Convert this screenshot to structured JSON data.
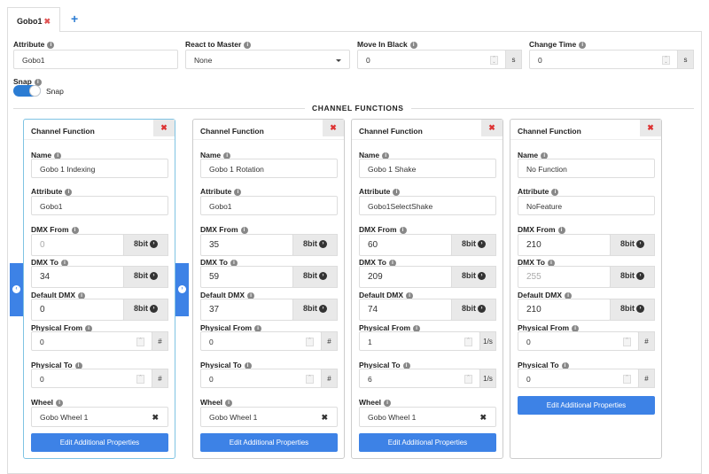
{
  "tabs": [
    {
      "label": "Gobo1"
    }
  ],
  "add_tab_icon": "plus-icon",
  "fields": {
    "attribute": {
      "label": "Attribute",
      "value": "Gobo1"
    },
    "react_to_master": {
      "label": "React to Master",
      "value": "None"
    },
    "move_in_black": {
      "label": "Move In Black",
      "value": "0",
      "unit": "s"
    },
    "change_time": {
      "label": "Change Time",
      "value": "0",
      "unit": "s"
    },
    "snap": {
      "label": "Snap",
      "toggle_label": "Snap",
      "on": true
    }
  },
  "section_title": "CHANNEL FUNCTIONS",
  "card_labels": {
    "title": "Channel Function",
    "name": "Name",
    "attribute": "Attribute",
    "dmx_from": "DMX From",
    "dmx_to": "DMX To",
    "default_dmx": "Default DMX",
    "physical_from": "Physical From",
    "physical_to": "Physical To",
    "wheel": "Wheel",
    "bit": "8bit",
    "edit_button": "Edit Additional Properties"
  },
  "accent_color": "#3d82e6",
  "channel_functions": [
    {
      "name": "Gobo 1 Indexing",
      "attribute": "Gobo1",
      "dmx_from": "0",
      "dmx_from_disabled": true,
      "dmx_to": "34",
      "dmx_to_disabled": false,
      "default_dmx": "0",
      "physical_from": "0",
      "physical_to": "0",
      "physical_unit": "#",
      "wheel": "Gobo Wheel 1",
      "selected": true
    },
    {
      "name": "Gobo 1 Rotation",
      "attribute": "Gobo1",
      "dmx_from": "35",
      "dmx_from_disabled": false,
      "dmx_to": "59",
      "dmx_to_disabled": false,
      "default_dmx": "37",
      "physical_from": "0",
      "physical_to": "0",
      "physical_unit": "#",
      "wheel": "Gobo Wheel 1",
      "selected": false
    },
    {
      "name": "Gobo 1 Shake",
      "attribute": "Gobo1SelectShake",
      "dmx_from": "60",
      "dmx_from_disabled": false,
      "dmx_to": "209",
      "dmx_to_disabled": false,
      "default_dmx": "74",
      "physical_from": "1",
      "physical_to": "6",
      "physical_unit": "1/s",
      "wheel": "Gobo Wheel 1",
      "selected": false
    },
    {
      "name": "No Function",
      "attribute": "NoFeature",
      "dmx_from": "210",
      "dmx_from_disabled": false,
      "dmx_to": "255",
      "dmx_to_disabled": true,
      "default_dmx": "210",
      "physical_from": "0",
      "physical_to": "0",
      "physical_unit": "#",
      "wheel": null,
      "selected": false
    }
  ]
}
